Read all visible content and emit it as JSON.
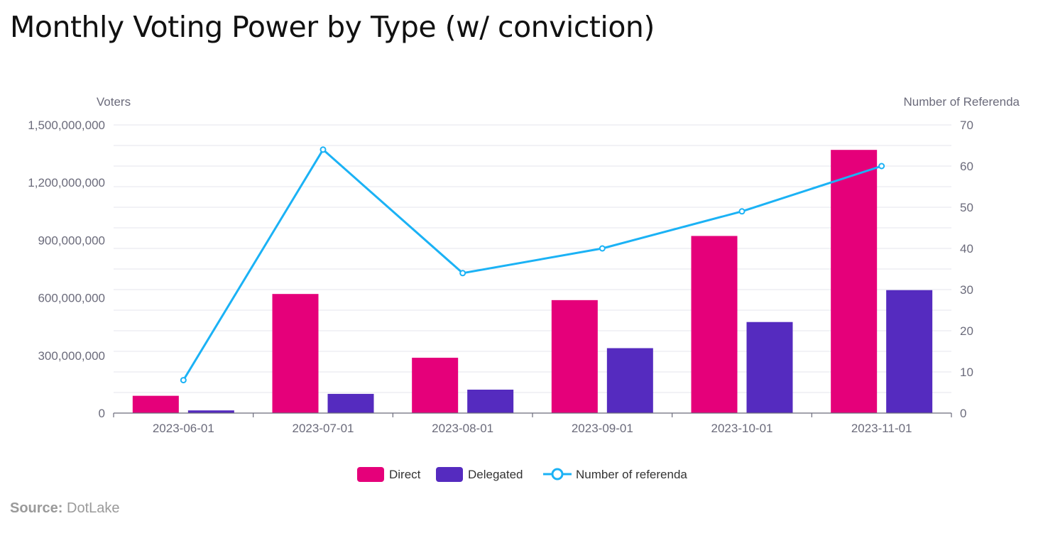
{
  "title": "Monthly Voting Power by Type (w/ conviction)",
  "source": {
    "label": "Source:",
    "value": "DotLake"
  },
  "colors": {
    "direct": "#e5007a",
    "delegated": "#552bbf",
    "referenda": "#1bb2f5",
    "grid": "#e6e6ee",
    "axis": "#6b6b7b"
  },
  "chart_data": {
    "type": "bar",
    "categories": [
      "2023-06-01",
      "2023-07-01",
      "2023-08-01",
      "2023-09-01",
      "2023-10-01",
      "2023-11-01"
    ],
    "series": [
      {
        "name": "Direct",
        "type": "bar",
        "axis": "left",
        "values": [
          90000000,
          620000000,
          288000000,
          588000000,
          922000000,
          1370000000
        ]
      },
      {
        "name": "Delegated",
        "type": "bar",
        "axis": "left",
        "values": [
          14000000,
          100000000,
          122000000,
          338000000,
          474000000,
          640000000
        ]
      },
      {
        "name": "Number of referenda",
        "type": "line",
        "axis": "right",
        "values": [
          8,
          64,
          34,
          40,
          49,
          60
        ]
      }
    ],
    "ylabel_left": "Voters",
    "ylabel_right": "Number of Referenda",
    "ylim_left": [
      0,
      1500000000
    ],
    "ylim_right": [
      0,
      70
    ],
    "yticks_left": [
      "0",
      "300,000,000",
      "600,000,000",
      "900,000,000",
      "1,200,000,000",
      "1,500,000,000"
    ],
    "yticks_left_values": [
      0,
      300000000,
      600000000,
      900000000,
      1200000000,
      1500000000
    ],
    "yticks_right": [
      "0",
      "10",
      "20",
      "30",
      "40",
      "50",
      "60",
      "70"
    ],
    "grid": true,
    "legend_position": "bottom-center"
  }
}
